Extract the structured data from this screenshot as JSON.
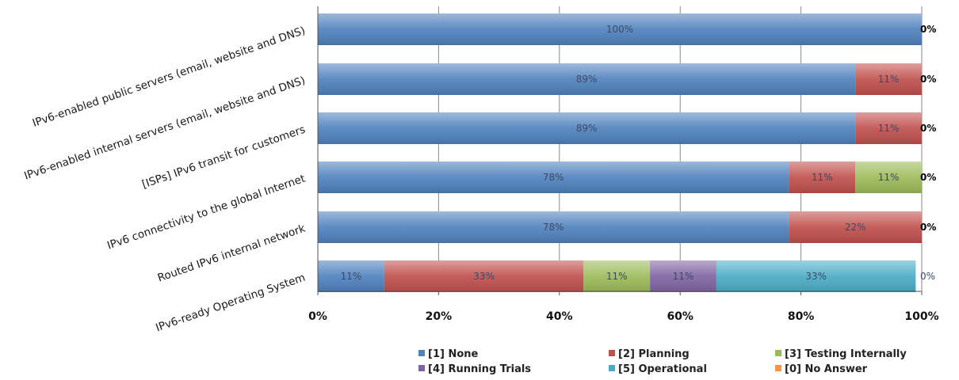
{
  "chart_data": {
    "type": "bar",
    "orientation": "horizontal",
    "stacked": true,
    "normalized": true,
    "title": "",
    "xlabel": "",
    "ylabel": "",
    "xlim": [
      0,
      100
    ],
    "xticks": [
      "0%",
      "20%",
      "40%",
      "60%",
      "80%",
      "100%"
    ],
    "grid": true,
    "legend_position": "bottom",
    "categories": [
      "IPv6-enabled public servers (email, website and DNS)",
      "IPv6-enabled internal servers (email, website and DNS)",
      "[ISPs] IPv6 transit for customers",
      "IPv6 connectivity to the global Internet",
      "Routed IPv6 internal network",
      "IPv6-ready Operating System"
    ],
    "series": [
      {
        "name": "[1] None",
        "color": "#4f81bd",
        "values": [
          100,
          89,
          89,
          78,
          78,
          11
        ],
        "labels": [
          "100%",
          "89%",
          "89%",
          "78%",
          "78%",
          "11%"
        ]
      },
      {
        "name": "[2] Planning",
        "color": "#c0504d",
        "values": [
          0,
          11,
          11,
          11,
          22,
          33
        ],
        "labels": [
          "",
          "11%",
          "11%",
          "11%",
          "22%",
          "33%"
        ]
      },
      {
        "name": "[3] Testing Internally",
        "color": "#9bbb59",
        "values": [
          0,
          0,
          0,
          11,
          0,
          11
        ],
        "labels": [
          "",
          "",
          "",
          "11%",
          "",
          "11%"
        ]
      },
      {
        "name": "[4] Running Trials",
        "color": "#8064a2",
        "values": [
          0,
          0,
          0,
          0,
          0,
          11
        ],
        "labels": [
          "",
          "",
          "",
          "",
          "",
          "11%"
        ]
      },
      {
        "name": "[5] Operational",
        "color": "#4bacc6",
        "values": [
          0,
          0,
          0,
          0,
          0,
          33
        ],
        "labels": [
          "",
          "",
          "",
          "",
          "",
          "33%"
        ]
      },
      {
        "name": "[0] No Answer",
        "color": "#f79646",
        "values": [
          0,
          0,
          0,
          0,
          0,
          0
        ],
        "labels": [
          "0%",
          "0%",
          "0%",
          "0%",
          "0%",
          "0%"
        ]
      }
    ]
  }
}
